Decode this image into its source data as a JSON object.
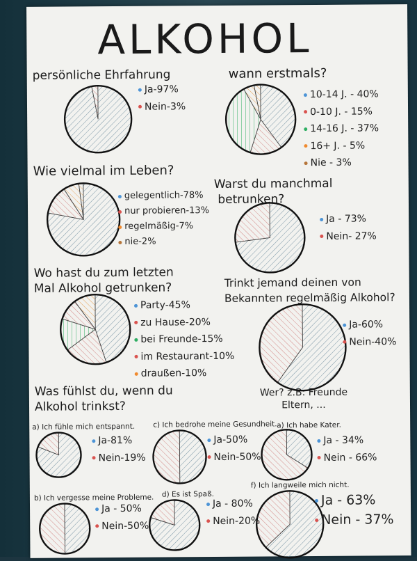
{
  "title": "ALKOHOL",
  "note": "Wer? z.B: Freunde\n       Eltern, ...",
  "colors": {
    "blue": "#4d94d6",
    "red": "#d9534f",
    "green": "#2eae62",
    "orange": "#f08a2e",
    "brown": "#b5753a",
    "hatch": "#555"
  },
  "chart_data": [
    {
      "type": "pie",
      "title": "persönliche Ehrfahrung",
      "series": [
        {
          "label": "Ja",
          "value": 97,
          "color": "blue"
        },
        {
          "label": "Nein",
          "value": 3,
          "color": "red"
        }
      ]
    },
    {
      "type": "pie",
      "title": "wann erstmals?",
      "series": [
        {
          "label": "10-14 J.",
          "value": 40,
          "color": "blue"
        },
        {
          "label": "0-10 J.",
          "value": 15,
          "color": "red"
        },
        {
          "label": "14-16 J.",
          "value": 37,
          "color": "green"
        },
        {
          "label": "16+ J.",
          "value": 5,
          "color": "orange"
        },
        {
          "label": "Nie",
          "value": 3,
          "color": "brown"
        }
      ]
    },
    {
      "type": "pie",
      "title": "Wie vielmal im Leben?",
      "series": [
        {
          "label": "gelegentlich",
          "value": 78,
          "color": "blue"
        },
        {
          "label": "nur probieren",
          "value": 13,
          "color": "red"
        },
        {
          "label": "regelmäßig",
          "value": 7,
          "color": "orange"
        },
        {
          "label": "nie",
          "value": 2,
          "color": "brown"
        }
      ]
    },
    {
      "type": "pie",
      "title": "Warst du manchmal betrunken?",
      "series": [
        {
          "label": "Ja",
          "value": 73,
          "color": "blue"
        },
        {
          "label": "Nein",
          "value": 27,
          "color": "red"
        }
      ]
    },
    {
      "type": "pie",
      "title": "Wo hast du zum letzten Mal Alkohol getrunken?",
      "series": [
        {
          "label": "Party",
          "value": 45,
          "color": "blue"
        },
        {
          "label": "zu Hause",
          "value": 20,
          "color": "red"
        },
        {
          "label": "bei Freunde",
          "value": 15,
          "color": "green"
        },
        {
          "label": "im Restaurant",
          "value": 10,
          "color": "red"
        },
        {
          "label": "draußen",
          "value": 10,
          "color": "orange"
        }
      ]
    },
    {
      "type": "pie",
      "title": "Trinkt jemand deinen von Bekannten regelmäßig Alkohol?",
      "series": [
        {
          "label": "Ja",
          "value": 60,
          "color": "blue"
        },
        {
          "label": "Nein",
          "value": 40,
          "color": "red"
        }
      ]
    },
    {
      "type": "pie",
      "title": "a) Ich fühle mich entspannt.",
      "series": [
        {
          "label": "Ja",
          "value": 81,
          "color": "blue"
        },
        {
          "label": "Nein",
          "value": 19,
          "color": "red"
        }
      ]
    },
    {
      "type": "pie",
      "title": "c) Ich bedrohe meine Gesundheit.",
      "series": [
        {
          "label": "Ja",
          "value": 50,
          "color": "blue"
        },
        {
          "label": "Nein",
          "value": 50,
          "color": "red"
        }
      ]
    },
    {
      "type": "pie",
      "title": "a) Ich habe Kater.",
      "series": [
        {
          "label": "Ja",
          "value": 34,
          "color": "blue"
        },
        {
          "label": "Nein",
          "value": 66,
          "color": "red"
        }
      ]
    },
    {
      "type": "pie",
      "title": "b) Ich vergesse meine Probleme.",
      "series": [
        {
          "label": "Ja",
          "value": 50,
          "color": "blue"
        },
        {
          "label": "Nein",
          "value": 50,
          "color": "red"
        }
      ]
    },
    {
      "type": "pie",
      "title": "d) Es ist Spaß.",
      "series": [
        {
          "label": "Ja",
          "value": 80,
          "color": "blue"
        },
        {
          "label": "Nein",
          "value": 20,
          "color": "red"
        }
      ]
    },
    {
      "type": "pie",
      "title": "f) Ich langweile mich nicht.",
      "series": [
        {
          "label": "Ja",
          "value": 63,
          "color": "blue"
        },
        {
          "label": "Nein",
          "value": 37,
          "color": "red"
        }
      ]
    }
  ],
  "legend_text": [
    [
      "Ja-97%",
      "Nein-3%"
    ],
    [
      "10-14 J. - 40%",
      "0-10 J. - 15%",
      "14-16 J. - 37%",
      "16+ J. - 5%",
      "Nie - 3%"
    ],
    [
      "gelegentlich-78%",
      "nur probieren-13%",
      "regelmäßig-7%",
      "nie-2%"
    ],
    [
      "Ja - 73%",
      "Nein- 27%"
    ],
    [
      "Party-45%",
      "zu Hause-20%",
      "bei Freunde-15%",
      "im Restaurant-10%",
      "draußen-10%"
    ],
    [
      "Ja-60%",
      "Nein-40%"
    ],
    [
      "Ja-81%",
      "Nein-19%"
    ],
    [
      "Ja-50%",
      "Nein-50%"
    ],
    [
      "Ja - 34%",
      "Nein - 66%"
    ],
    [
      "Ja - 50%",
      "Nein-50%"
    ],
    [
      "Ja - 80%",
      "Nein-20%"
    ],
    [
      "Ja - 63%",
      "Nein - 37%"
    ]
  ],
  "question_text": [
    "persönliche Ehrfahrung",
    "wann erstmals?",
    "Wie vielmal im Leben?",
    "Warst du manchmal\n betrunken?",
    "Wo hast du zum letzten\nMal Alkohol getrunken?",
    "Trinkt jemand deinen von\nBekannten regelmäßig Alkohol?",
    "a) Ich fühle mich entspannt.",
    "c) Ich bedrohe meine Gesundheit.",
    "a) Ich habe Kater.",
    "b) Ich vergesse meine Probleme.",
    "d) Es ist Spaß.",
    "f) Ich langweile mich nicht."
  ],
  "section_heading": "Was fühlst du, wenn du\nAlkohol trinkst?"
}
